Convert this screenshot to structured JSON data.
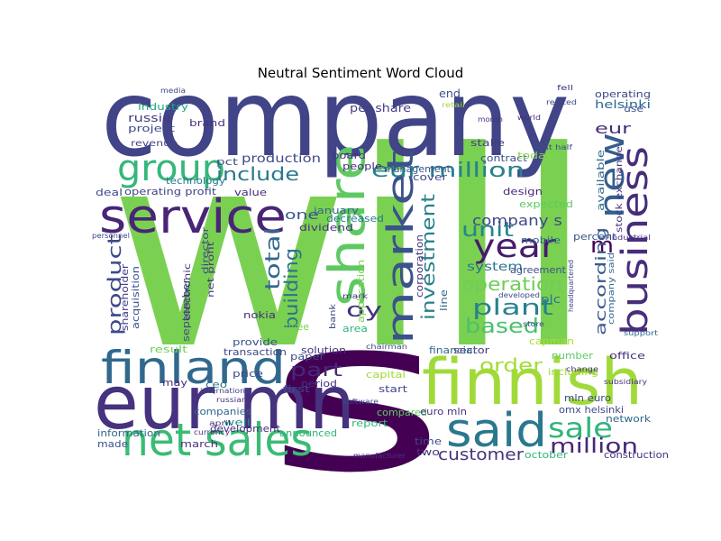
{
  "chart_data": {
    "type": "wordcloud",
    "title": "Neutral Sentiment Word Cloud",
    "words": [
      {
        "text": "will",
        "color": "#7ad151"
      },
      {
        "text": "s",
        "color": "#440154"
      },
      {
        "text": "company",
        "color": "#414487"
      },
      {
        "text": "eur mn",
        "color": "#46327e"
      },
      {
        "text": "finnish",
        "color": "#a0da39"
      },
      {
        "text": "finland",
        "color": "#31688e"
      },
      {
        "text": "net sales",
        "color": "#3bbb75"
      },
      {
        "text": "service",
        "color": "#482576"
      },
      {
        "text": "said",
        "color": "#2a788e"
      },
      {
        "text": "share",
        "color": "#5ec962"
      },
      {
        "text": "market",
        "color": "#3b528b"
      },
      {
        "text": "business",
        "color": "#472d7b"
      },
      {
        "text": "group",
        "color": "#35b779"
      },
      {
        "text": "year",
        "color": "#481a6c"
      },
      {
        "text": "new",
        "color": "#355f8d"
      },
      {
        "text": "eur million",
        "color": "#26828e"
      },
      {
        "text": "sale",
        "color": "#2fb47c"
      },
      {
        "text": "million",
        "color": "#482878"
      },
      {
        "text": "plant",
        "color": "#26828e"
      },
      {
        "text": "operation",
        "color": "#6ece58"
      },
      {
        "text": "investment",
        "color": "#27808e"
      },
      {
        "text": "based",
        "color": "#4ac16d"
      },
      {
        "text": "m",
        "color": "#440154"
      },
      {
        "text": "product",
        "color": "#3e4989"
      },
      {
        "text": "total",
        "color": "#31688e"
      },
      {
        "text": "building",
        "color": "#2c728e"
      },
      {
        "text": "order",
        "color": "#a5db36"
      },
      {
        "text": "part",
        "color": "#482878"
      },
      {
        "text": "unit",
        "color": "#24868e"
      },
      {
        "text": "company s",
        "color": "#3e4989"
      },
      {
        "text": "customer",
        "color": "#46337e"
      },
      {
        "text": "according",
        "color": "#375a8c"
      },
      {
        "text": "include",
        "color": "#2a788e"
      },
      {
        "text": "production",
        "color": "#3e4989"
      },
      {
        "text": "oy",
        "color": "#46327e"
      },
      {
        "text": "one",
        "color": "#3b528b"
      },
      {
        "text": "system",
        "color": "#2c728e"
      },
      {
        "text": "eur",
        "color": "#472c7a"
      },
      {
        "text": "operating",
        "color": "#3f4889"
      },
      {
        "text": "helsinki",
        "color": "#31688e"
      },
      {
        "text": "per share",
        "color": "#433e85"
      },
      {
        "text": "end",
        "color": "#3b528b"
      },
      {
        "text": "russia",
        "color": "#443a83"
      },
      {
        "text": "industry",
        "color": "#22a884"
      },
      {
        "text": "project",
        "color": "#3e4989"
      },
      {
        "text": "revenue",
        "color": "#414487"
      },
      {
        "text": "brand",
        "color": "#46327e"
      },
      {
        "text": "technology",
        "color": "#2a788e"
      },
      {
        "text": "pct",
        "color": "#3b528b"
      },
      {
        "text": "board",
        "color": "#46327e"
      },
      {
        "text": "people",
        "color": "#472d7b"
      },
      {
        "text": "contract",
        "color": "#3b528b"
      },
      {
        "text": "stake",
        "color": "#443983"
      },
      {
        "text": "today",
        "color": "#84d44b"
      },
      {
        "text": "design",
        "color": "#482878"
      },
      {
        "text": "expected",
        "color": "#5ec962"
      },
      {
        "text": "mobile",
        "color": "#31688e"
      },
      {
        "text": "agreement",
        "color": "#3b528b"
      },
      {
        "text": "plc",
        "color": "#2c728e"
      },
      {
        "text": "percent",
        "color": "#3b528b"
      },
      {
        "text": "available",
        "color": "#31688e"
      },
      {
        "text": "stock exchange",
        "color": "#46327e"
      },
      {
        "text": "use",
        "color": "#3b528b"
      },
      {
        "text": "deal",
        "color": "#3e4989"
      },
      {
        "text": "operating profit",
        "color": "#414487"
      },
      {
        "text": "value",
        "color": "#472d7b"
      },
      {
        "text": "january",
        "color": "#31688e"
      },
      {
        "text": "dividend",
        "color": "#46327e"
      },
      {
        "text": "decreased",
        "color": "#2a788e"
      },
      {
        "text": "cover",
        "color": "#3e4989"
      },
      {
        "text": "management",
        "color": "#3b528b"
      },
      {
        "text": "sector",
        "color": "#46327e"
      },
      {
        "text": "financial",
        "color": "#31688e"
      },
      {
        "text": "compared",
        "color": "#5ec962"
      },
      {
        "text": "report",
        "color": "#35b779"
      },
      {
        "text": "capital",
        "color": "#a0da39"
      },
      {
        "text": "start",
        "color": "#3e4989"
      },
      {
        "text": "time",
        "color": "#3e4989"
      },
      {
        "text": "two",
        "color": "#46327e"
      },
      {
        "text": "paper",
        "color": "#3e4989"
      },
      {
        "text": "first",
        "color": "#3e4989"
      },
      {
        "text": "period",
        "color": "#46327e"
      },
      {
        "text": "solution",
        "color": "#46327e"
      },
      {
        "text": "may",
        "color": "#472d7b"
      },
      {
        "text": "ceo",
        "color": "#2a788e"
      },
      {
        "text": "companies",
        "color": "#31688e"
      },
      {
        "text": "well",
        "color": "#21918c"
      },
      {
        "text": "development",
        "color": "#472d7b"
      },
      {
        "text": "announced",
        "color": "#2fb47c"
      },
      {
        "text": "information",
        "color": "#31688e"
      },
      {
        "text": "made",
        "color": "#3b528b"
      },
      {
        "text": "march",
        "color": "#46327e"
      },
      {
        "text": "provide",
        "color": "#3b528b"
      },
      {
        "text": "transaction",
        "color": "#3e4989"
      },
      {
        "text": "result",
        "color": "#6ece58"
      },
      {
        "text": "acquisition",
        "color": "#3b528b"
      },
      {
        "text": "shareholder",
        "color": "#443983"
      },
      {
        "text": "september",
        "color": "#3e4989"
      },
      {
        "text": "nokia",
        "color": "#472d7b"
      },
      {
        "text": "employee",
        "color": "#7ad151"
      },
      {
        "text": "net profit",
        "color": "#46327e"
      },
      {
        "text": "director",
        "color": "#3e4989"
      },
      {
        "text": "electronic",
        "color": "#46327e"
      },
      {
        "text": "price",
        "color": "#3e4989"
      },
      {
        "text": "omx helsinki",
        "color": "#3e4989"
      },
      {
        "text": "euro mln",
        "color": "#46327e"
      },
      {
        "text": "mln euro",
        "color": "#3e4989"
      },
      {
        "text": "number",
        "color": "#5ec962"
      },
      {
        "text": "office",
        "color": "#46327e"
      },
      {
        "text": "network",
        "color": "#31688e"
      },
      {
        "text": "construction",
        "color": "#46327e"
      },
      {
        "text": "october",
        "color": "#35b779"
      },
      {
        "text": "capman",
        "color": "#addc30"
      },
      {
        "text": "line",
        "color": "#31688e"
      },
      {
        "text": "corporation",
        "color": "#46327e"
      },
      {
        "text": "application",
        "color": "#7ad151"
      },
      {
        "text": "including",
        "color": "#a0da39"
      },
      {
        "text": "bank",
        "color": "#3e4989"
      },
      {
        "text": "area",
        "color": "#2fb47c"
      },
      {
        "text": "mark",
        "color": "#46327e"
      },
      {
        "text": "company said",
        "color": "#31688e"
      },
      {
        "text": "chairman",
        "color": "#3e4989"
      },
      {
        "text": "change",
        "color": "#46327e"
      },
      {
        "text": "fell",
        "color": "#46327e"
      },
      {
        "text": "media",
        "color": "#3e4989"
      },
      {
        "text": "developed",
        "color": "#3e4989"
      },
      {
        "text": "support",
        "color": "#31688e"
      },
      {
        "text": "world",
        "color": "#46327e"
      },
      {
        "text": "month",
        "color": "#46327e"
      },
      {
        "text": "retail",
        "color": "#a0da39"
      },
      {
        "text": "first half",
        "color": "#3e4989"
      },
      {
        "text": "related",
        "color": "#3e4989"
      },
      {
        "text": "store",
        "color": "#3e4989"
      },
      {
        "text": "industrial",
        "color": "#46327e"
      },
      {
        "text": "software",
        "color": "#3e4989"
      },
      {
        "text": "subsidiary",
        "color": "#46327e"
      },
      {
        "text": "international",
        "color": "#3e4989"
      },
      {
        "text": "russian",
        "color": "#46327e"
      },
      {
        "text": "april",
        "color": "#46327e"
      },
      {
        "text": "currency",
        "color": "#46327e"
      },
      {
        "text": "personnel",
        "color": "#3e4989"
      },
      {
        "text": "headquartered",
        "color": "#3e4989"
      },
      {
        "text": "manufacturer",
        "color": "#46327e"
      }
    ]
  }
}
